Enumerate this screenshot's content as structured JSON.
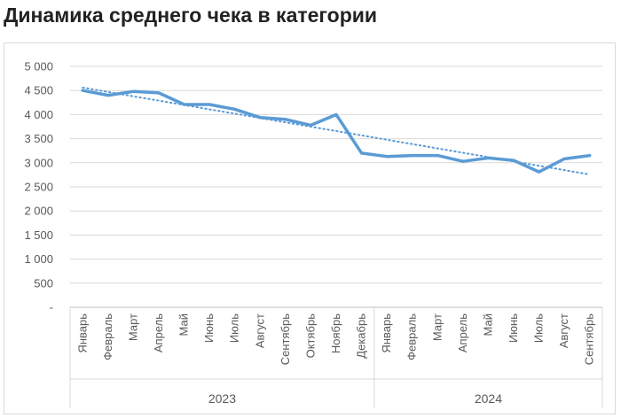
{
  "chart_data": {
    "type": "line",
    "title": "Динамика среднего чека в категории",
    "x": [
      "Январь",
      "Февраль",
      "Март",
      "Апрель",
      "Май",
      "Июнь",
      "Июль",
      "Август",
      "Сентябрь",
      "Октябрь",
      "Ноябрь",
      "Декабрь",
      "Январь",
      "Февраль",
      "Март",
      "Апрель",
      "Май",
      "Июнь",
      "Июль",
      "Август",
      "Сентябрь"
    ],
    "groups": [
      {
        "label": "2023",
        "count": 12
      },
      {
        "label": "2024",
        "count": 9
      }
    ],
    "series": [
      {
        "values": [
          4500,
          4400,
          4480,
          4450,
          4210,
          4210,
          4110,
          3940,
          3900,
          3780,
          4000,
          3200,
          3130,
          3150,
          3150,
          3030,
          3100,
          3050,
          2810,
          3080,
          3150
        ],
        "color": "#5b9bd5"
      }
    ],
    "trendline": {
      "type": "linear",
      "style": "dotted",
      "color": "#5b9bd5"
    },
    "ylim": [
      0,
      5000
    ],
    "yticks": [
      0,
      500,
      1000,
      1500,
      2000,
      2500,
      3000,
      3500,
      4000,
      4500,
      5000
    ],
    "ytick_labels": [
      "-",
      "500",
      "1 000",
      "1 500",
      "2 000",
      "2 500",
      "3 000",
      "3 500",
      "4 000",
      "4 500",
      "5 000"
    ],
    "grid": true,
    "legend": "none"
  }
}
